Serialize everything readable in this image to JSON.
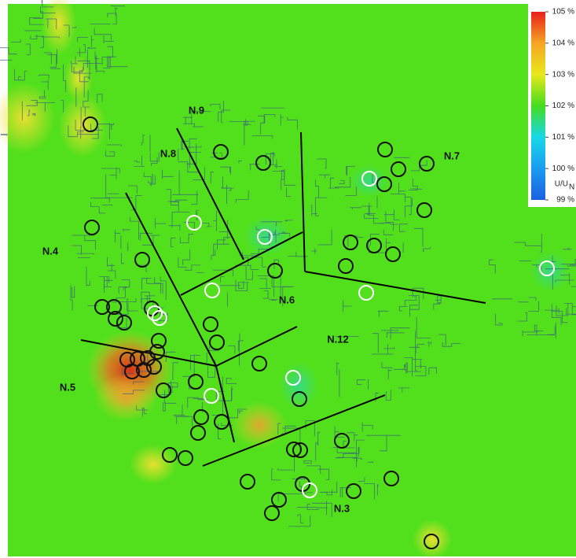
{
  "legend": {
    "ticks": [
      {
        "value": 105,
        "label": "105 %"
      },
      {
        "value": 104,
        "label": "104 %"
      },
      {
        "value": 103,
        "label": "103 %"
      },
      {
        "value": 102,
        "label": "102 %"
      },
      {
        "value": 101,
        "label": "101 %"
      },
      {
        "value": 100,
        "label": "100 %"
      },
      {
        "value": 99,
        "label": "99 %"
      }
    ],
    "colors": [
      "#e8201a",
      "#f5a623",
      "#e8e81c",
      "#44dd1e",
      "#18d8e8",
      "#1a9cf0",
      "#1a60e0"
    ],
    "unit": "U/U",
    "unit_subscript": "N"
  },
  "zones": [
    {
      "label": "N.9"
    },
    {
      "label": "N.8"
    },
    {
      "label": "N.7"
    },
    {
      "label": "N.4"
    },
    {
      "label": "N.6"
    },
    {
      "label": "N.12"
    },
    {
      "label": "N.5"
    },
    {
      "label": "N.3"
    }
  ]
}
